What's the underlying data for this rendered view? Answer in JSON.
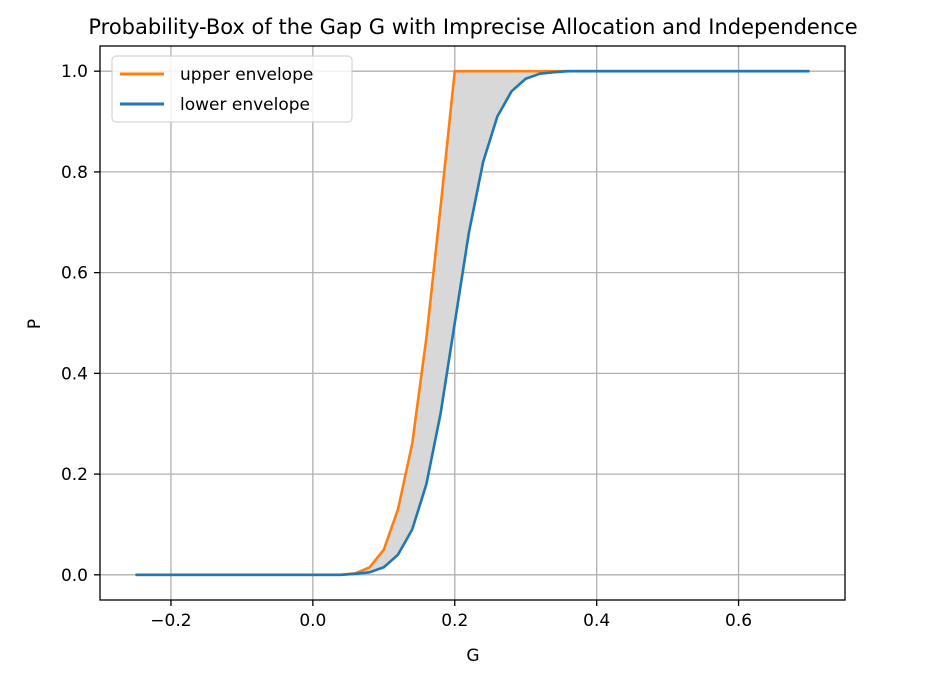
{
  "chart_data": {
    "type": "line",
    "title": "Probability-Box of the Gap G with Imprecise Allocation and Independence",
    "xlabel": "G",
    "ylabel": "P",
    "xlim": [
      -0.3,
      0.75
    ],
    "ylim": [
      -0.05,
      1.05
    ],
    "x_ticks": [
      -0.2,
      0.0,
      0.2,
      0.4,
      0.6
    ],
    "x_tick_labels": [
      "−0.2",
      "0.0",
      "0.2",
      "0.4",
      "0.6"
    ],
    "y_ticks": [
      0.0,
      0.2,
      0.4,
      0.6,
      0.8,
      1.0
    ],
    "y_tick_labels": [
      "0.0",
      "0.2",
      "0.4",
      "0.6",
      "0.8",
      "1.0"
    ],
    "grid": true,
    "legend_position": "top-left",
    "band_fill": "between upper and lower envelope",
    "series": [
      {
        "name": "upper envelope",
        "color": "#ff7f0e",
        "x": [
          -0.25,
          0.0,
          0.04,
          0.06,
          0.08,
          0.1,
          0.12,
          0.14,
          0.16,
          0.18,
          0.2,
          0.3,
          0.7
        ],
        "y": [
          0.0,
          0.0,
          0.0,
          0.003,
          0.015,
          0.05,
          0.13,
          0.26,
          0.47,
          0.73,
          1.0,
          1.0,
          1.0
        ]
      },
      {
        "name": "lower envelope",
        "color": "#1f77b4",
        "x": [
          -0.25,
          0.0,
          0.04,
          0.06,
          0.08,
          0.1,
          0.12,
          0.14,
          0.16,
          0.18,
          0.2,
          0.22,
          0.24,
          0.26,
          0.28,
          0.3,
          0.32,
          0.34,
          0.36,
          0.4,
          0.7
        ],
        "y": [
          0.0,
          0.0,
          0.0,
          0.002,
          0.005,
          0.015,
          0.04,
          0.09,
          0.18,
          0.32,
          0.5,
          0.68,
          0.82,
          0.91,
          0.96,
          0.985,
          0.995,
          0.998,
          1.0,
          1.0,
          1.0
        ]
      }
    ]
  }
}
